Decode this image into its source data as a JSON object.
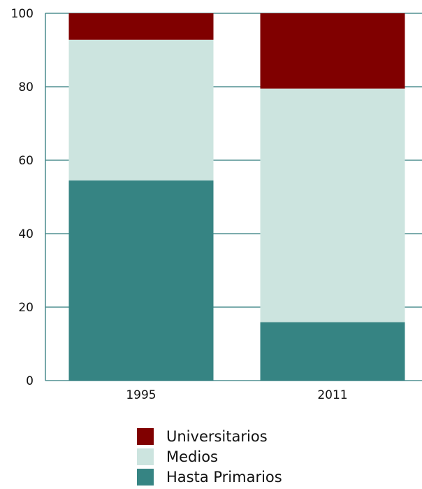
{
  "chart_data": {
    "type": "bar",
    "stacked": true,
    "categories": [
      "1995",
      "2011"
    ],
    "series": [
      {
        "name": "Hasta Primarios",
        "values": [
          54.5,
          15.9
        ],
        "color": "#368483"
      },
      {
        "name": "Medios",
        "values": [
          38.3,
          63.6
        ],
        "color": "#cce4df"
      },
      {
        "name": "Universitarios",
        "values": [
          7.2,
          20.5
        ],
        "color": "#800000"
      }
    ],
    "legend_order": [
      "Universitarios",
      "Medios",
      "Hasta Primarios"
    ],
    "ylim": [
      0,
      100
    ],
    "yticks": [
      0,
      20,
      40,
      60,
      80,
      100
    ],
    "grid": true,
    "grid_color": "#2e7a7c",
    "legend_position": "bottom"
  }
}
